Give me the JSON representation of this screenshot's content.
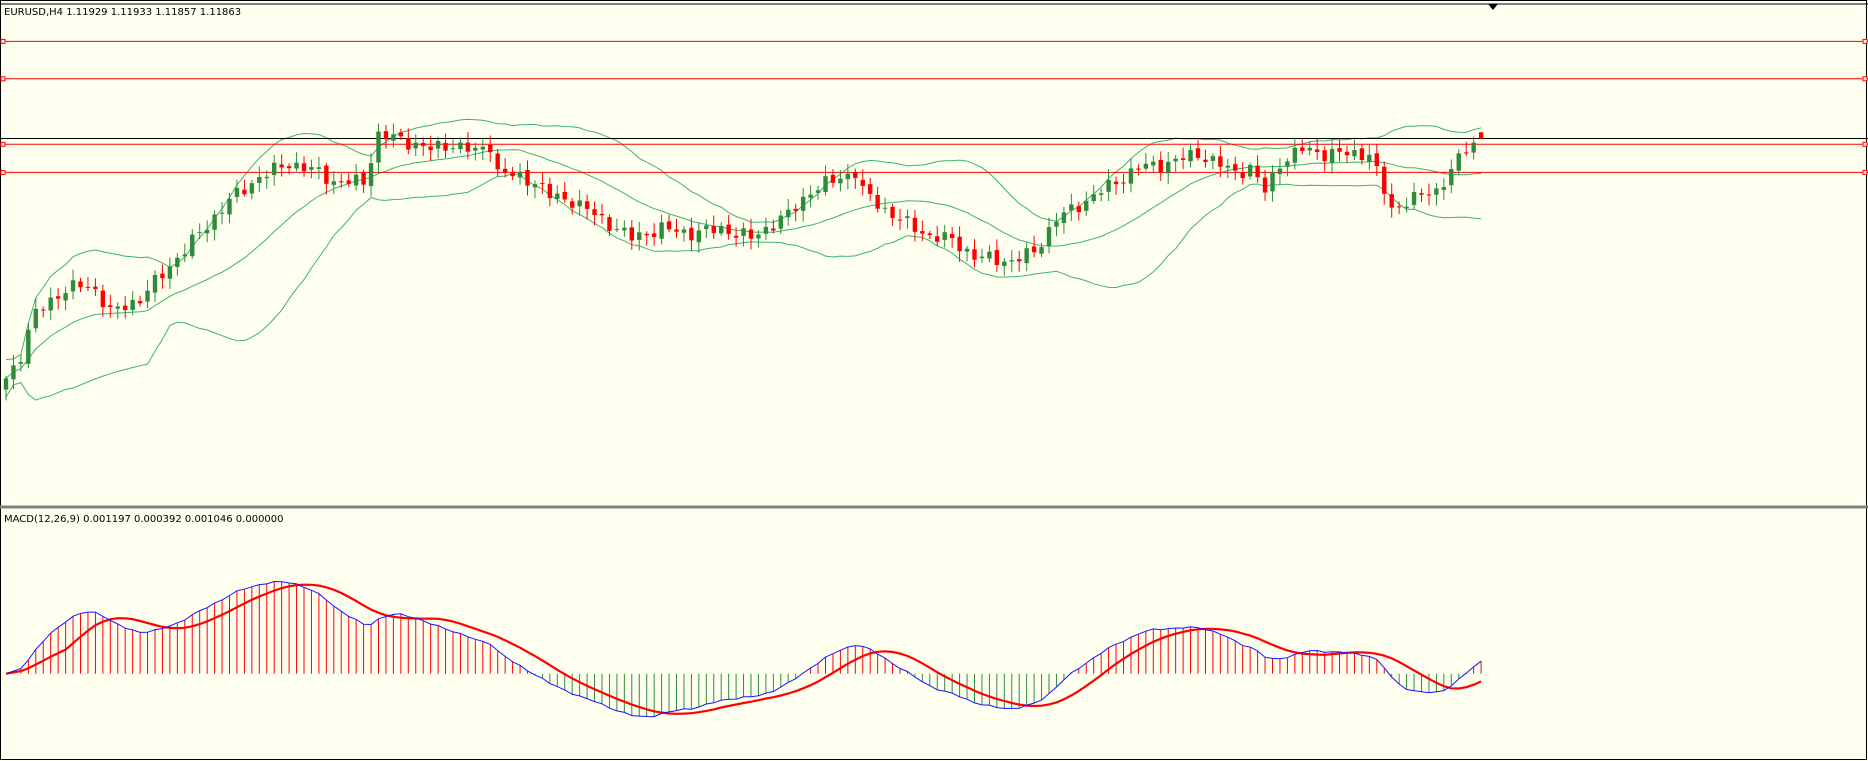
{
  "header": {
    "main_label": "EURUSD,H4  1.11929 1.11933 1.11857 1.11863",
    "macd_label": "MACD(12,26,9) 0.001197 0.000392 0.001046 0.000000"
  },
  "colors": {
    "background": "#fffff0",
    "bull": "#2e8b3a",
    "bear": "#ff0000",
    "bands": "#3cb371",
    "levels": "#ff0000",
    "current_price_line": "#000000",
    "macd_line": "#1515ff",
    "signal_line": "#ff0000",
    "hist_positive": "#ff0000",
    "hist_negative": "#2e8b3a"
  },
  "chart_data": [
    {
      "type": "candlestick",
      "symbol": "EURUSD",
      "timeframe": "H4",
      "last_ohlc": {
        "open": 1.11929,
        "high": 1.11933,
        "low": 1.11857,
        "close": 1.11863
      },
      "indicator": "Bollinger Bands",
      "horizontal_levels": [
        1.129,
        1.125,
        1.118,
        1.115
      ],
      "current_price": 1.11863,
      "ylim": [
        1.08,
        1.1315
      ],
      "grid": false,
      "anchors": [
        [
          0,
          1.093
        ],
        [
          2,
          1.0955
        ],
        [
          4,
          1.1
        ],
        [
          7,
          1.102
        ],
        [
          10,
          1.103
        ],
        [
          12,
          1.1025
        ],
        [
          14,
          1.1
        ],
        [
          18,
          1.1015
        ],
        [
          22,
          1.105
        ],
        [
          26,
          1.1085
        ],
        [
          30,
          1.112
        ],
        [
          34,
          1.1145
        ],
        [
          38,
          1.116
        ],
        [
          42,
          1.115
        ],
        [
          44,
          1.114
        ],
        [
          48,
          1.114
        ],
        [
          50,
          1.119
        ],
        [
          53,
          1.1185
        ],
        [
          57,
          1.1175
        ],
        [
          60,
          1.118
        ],
        [
          63,
          1.1172
        ],
        [
          65,
          1.118
        ],
        [
          66,
          1.115
        ],
        [
          69,
          1.1145
        ],
        [
          71,
          1.114
        ],
        [
          73,
          1.1125
        ],
        [
          76,
          1.112
        ],
        [
          80,
          1.11
        ],
        [
          84,
          1.108
        ],
        [
          88,
          1.109
        ],
        [
          92,
          1.1085
        ],
        [
          96,
          1.109
        ],
        [
          100,
          1.108
        ],
        [
          105,
          1.1105
        ],
        [
          108,
          1.113
        ],
        [
          112,
          1.1145
        ],
        [
          114,
          1.115
        ],
        [
          115,
          1.113
        ],
        [
          118,
          1.111
        ],
        [
          121,
          1.1095
        ],
        [
          124,
          1.1082
        ],
        [
          127,
          1.1078
        ],
        [
          130,
          1.106
        ],
        [
          135,
          1.1055
        ],
        [
          138,
          1.1065
        ],
        [
          141,
          1.11
        ],
        [
          145,
          1.112
        ],
        [
          149,
          1.114
        ],
        [
          152,
          1.1155
        ],
        [
          156,
          1.116
        ],
        [
          160,
          1.117
        ],
        [
          165,
          1.115
        ],
        [
          167,
          1.1155
        ],
        [
          169,
          1.113
        ],
        [
          171,
          1.116
        ],
        [
          174,
          1.1175
        ],
        [
          177,
          1.117
        ],
        [
          180,
          1.117
        ],
        [
          183,
          1.117
        ],
        [
          186,
          1.111
        ],
        [
          188,
          1.112
        ],
        [
          192,
          1.113
        ],
        [
          196,
          1.1175
        ],
        [
          198,
          1.1185
        ]
      ]
    },
    {
      "type": "line",
      "indicator": "MACD",
      "params": [
        12,
        26,
        9
      ],
      "values": {
        "macd": 0.001197,
        "signal": 0.000392,
        "histogram": 0.001046,
        "level": 0.0
      },
      "series_labels": [
        "MACD",
        "Signal",
        "Histogram"
      ],
      "ylim": [
        -0.0035,
        0.0062
      ]
    }
  ]
}
